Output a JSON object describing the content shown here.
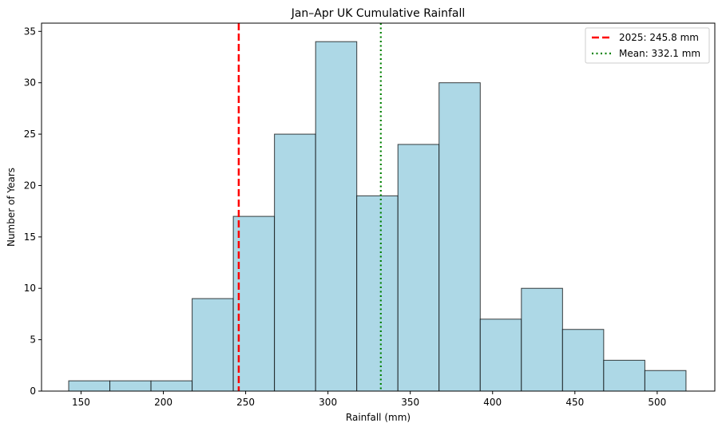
{
  "chart_data": {
    "type": "bar",
    "title": "Jan–Apr UK Cumulative Rainfall",
    "xlabel": "Rainfall (mm)",
    "ylabel": "Number of Years",
    "xlim": [
      126,
      535
    ],
    "ylim": [
      0,
      35.8
    ],
    "xticks": [
      150,
      200,
      250,
      300,
      350,
      400,
      450,
      500
    ],
    "yticks": [
      0,
      5,
      10,
      15,
      20,
      25,
      30,
      35
    ],
    "bins": [
      {
        "x0": 142.5,
        "x1": 167.5,
        "count": 1
      },
      {
        "x0": 167.5,
        "x1": 192.5,
        "count": 1
      },
      {
        "x0": 192.5,
        "x1": 217.5,
        "count": 1
      },
      {
        "x0": 217.5,
        "x1": 242.5,
        "count": 9
      },
      {
        "x0": 242.5,
        "x1": 267.5,
        "count": 17
      },
      {
        "x0": 267.5,
        "x1": 292.5,
        "count": 25
      },
      {
        "x0": 292.5,
        "x1": 317.5,
        "count": 34
      },
      {
        "x0": 317.5,
        "x1": 342.5,
        "count": 19
      },
      {
        "x0": 342.5,
        "x1": 367.5,
        "count": 24
      },
      {
        "x0": 367.5,
        "x1": 392.5,
        "count": 30
      },
      {
        "x0": 392.5,
        "x1": 417.5,
        "count": 7
      },
      {
        "x0": 417.5,
        "x1": 442.5,
        "count": 10
      },
      {
        "x0": 442.5,
        "x1": 467.5,
        "count": 6
      },
      {
        "x0": 467.5,
        "x1": 492.5,
        "count": 3
      },
      {
        "x0": 492.5,
        "x1": 517.5,
        "count": 2
      }
    ],
    "reference_lines": [
      {
        "label": "2025: 245.8 mm",
        "x": 245.8,
        "color": "#ff0000",
        "style": "dashed"
      },
      {
        "label": "Mean: 332.1 mm",
        "x": 332.1,
        "color": "#008000",
        "style": "dotted"
      }
    ],
    "bar_color": "#add8e6",
    "bar_edge_color": "#000000",
    "legend_position": "top-right",
    "grid": false
  }
}
